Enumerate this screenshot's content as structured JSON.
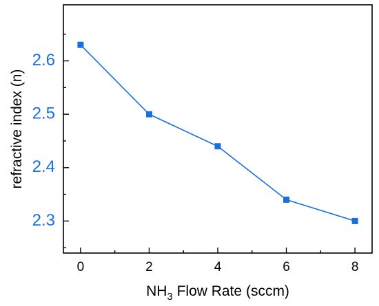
{
  "colors": {
    "series": "#1a6fdf",
    "y_tick_labels": "#1a6fdf",
    "x_tick_labels": "#000000",
    "axis": "#000000"
  },
  "chart_data": {
    "type": "line",
    "x": [
      0,
      2,
      4,
      6,
      8
    ],
    "series": [
      {
        "values": [
          2.63,
          2.5,
          2.44,
          2.34,
          2.3
        ],
        "marker": "square"
      }
    ],
    "xlabel_main": "NH",
    "xlabel_sub": "3",
    "xlabel_rest": " Flow Rate (sccm)",
    "ylabel": "refractive index (n)",
    "xlim": [
      -0.5,
      8.5
    ],
    "ylim": [
      2.24,
      2.705
    ],
    "x_ticks": [
      0,
      2,
      4,
      6,
      8
    ],
    "x_tick_labels": [
      "0",
      "2",
      "4",
      "6",
      "8"
    ],
    "y_ticks": [
      2.3,
      2.4,
      2.5,
      2.6
    ],
    "y_tick_labels": [
      "2.3",
      "2.4",
      "2.5",
      "2.6"
    ],
    "grid": false,
    "legend": "none"
  }
}
